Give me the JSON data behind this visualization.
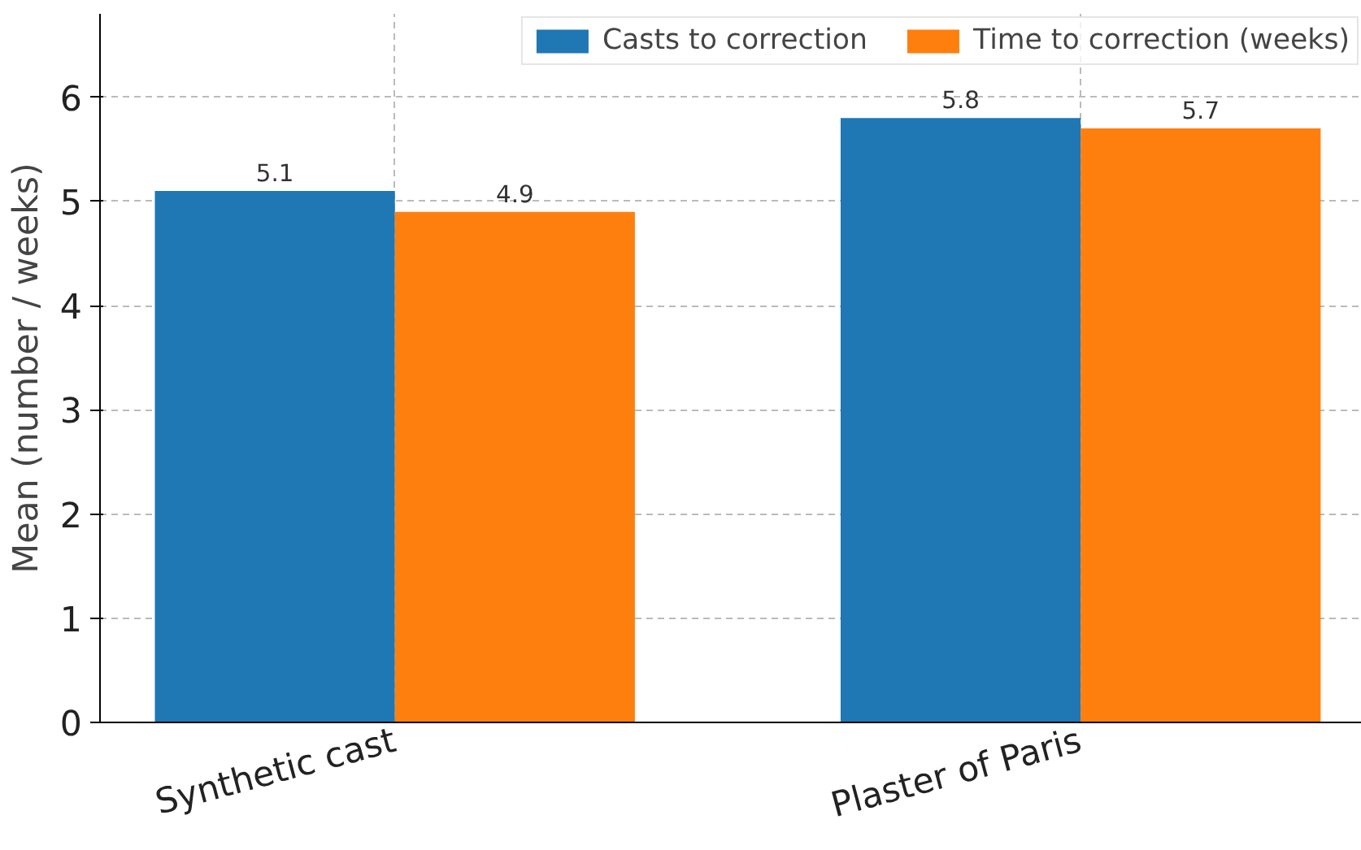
{
  "chart_data": {
    "type": "bar",
    "ylabel": "Mean (number / weeks)",
    "categories": [
      "Synthetic cast",
      "Plaster of Paris"
    ],
    "series": [
      {
        "name": "Casts to correction",
        "color": "#1f77b4",
        "values": [
          5.1,
          5.8
        ]
      },
      {
        "name": "Time to correction (weeks)",
        "color": "#ff7f0e",
        "values": [
          4.9,
          5.7
        ]
      }
    ],
    "ylim": [
      0,
      6.8
    ],
    "yticks": [
      0,
      1,
      2,
      3,
      4,
      5,
      6
    ],
    "grid": true,
    "legend": "top right",
    "data_labels": true
  }
}
